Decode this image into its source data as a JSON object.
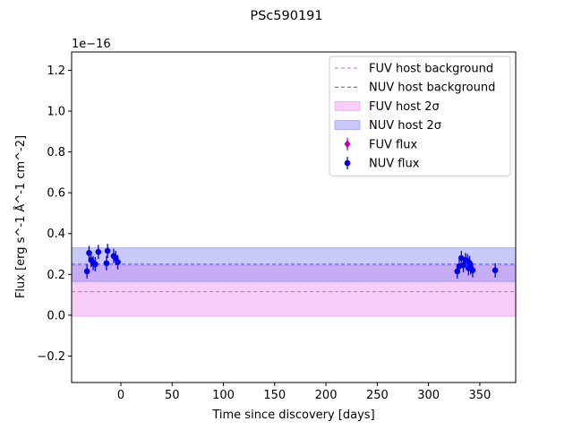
{
  "chart_data": {
    "type": "scatter",
    "title": "PSc590191",
    "xlabel": "Time since discovery [days]",
    "ylabel": "Flux [erg s^-1 Å^-1 cm^-2]",
    "y_offset_label": "1e−16",
    "y_scale": 1e-16,
    "xlim": [
      -48,
      385
    ],
    "ylim": [
      -0.33,
      1.29
    ],
    "x_ticks": [
      0,
      50,
      100,
      150,
      200,
      250,
      300,
      350
    ],
    "y_ticks": [
      -0.2,
      0.0,
      0.2,
      0.4,
      0.6,
      0.8,
      1.0,
      1.2
    ],
    "x_tick_labels": [
      "0",
      "50",
      "100",
      "150",
      "200",
      "250",
      "300",
      "350"
    ],
    "y_tick_labels": [
      "−0.2",
      "0.0",
      "0.2",
      "0.4",
      "0.6",
      "0.8",
      "1.0",
      "1.2"
    ],
    "grid": false,
    "legend_position": "top-right",
    "bands": [
      {
        "name": "FUV host 2σ",
        "lower": -0.005,
        "upper": 0.245,
        "color": "#ee82ee",
        "opacity": 0.4
      },
      {
        "name": "NUV host 2σ",
        "lower": 0.165,
        "upper": 0.33,
        "color": "#7b7bf0",
        "opacity": 0.4
      }
    ],
    "hlines": [
      {
        "name": "FUV host background",
        "y": 0.115,
        "color": "#e060c0"
      },
      {
        "name": "NUV host background",
        "y": 0.25,
        "color": "#5050e0"
      }
    ],
    "series": [
      {
        "name": "FUV flux",
        "color": "#bf00bf",
        "marker": "diamond",
        "points": []
      },
      {
        "name": "NUV flux",
        "color": "#0000ee",
        "marker": "circle",
        "points": [
          {
            "x": -33,
            "y": 0.215,
            "err": 0.035
          },
          {
            "x": -31,
            "y": 0.305,
            "err": 0.035
          },
          {
            "x": -29,
            "y": 0.27,
            "err": 0.035
          },
          {
            "x": -27,
            "y": 0.255,
            "err": 0.035
          },
          {
            "x": -25,
            "y": 0.25,
            "err": 0.035
          },
          {
            "x": -22,
            "y": 0.31,
            "err": 0.035
          },
          {
            "x": -14,
            "y": 0.255,
            "err": 0.035
          },
          {
            "x": -13,
            "y": 0.315,
            "err": 0.035
          },
          {
            "x": -7,
            "y": 0.29,
            "err": 0.035
          },
          {
            "x": -5,
            "y": 0.28,
            "err": 0.035
          },
          {
            "x": -3,
            "y": 0.26,
            "err": 0.035
          },
          {
            "x": 328,
            "y": 0.215,
            "err": 0.035
          },
          {
            "x": 330,
            "y": 0.24,
            "err": 0.035
          },
          {
            "x": 332,
            "y": 0.28,
            "err": 0.035
          },
          {
            "x": 334,
            "y": 0.245,
            "err": 0.035
          },
          {
            "x": 336,
            "y": 0.27,
            "err": 0.035
          },
          {
            "x": 338,
            "y": 0.265,
            "err": 0.035
          },
          {
            "x": 339,
            "y": 0.23,
            "err": 0.035
          },
          {
            "x": 340,
            "y": 0.255,
            "err": 0.035
          },
          {
            "x": 341,
            "y": 0.235,
            "err": 0.035
          },
          {
            "x": 343,
            "y": 0.22,
            "err": 0.035
          },
          {
            "x": 365,
            "y": 0.22,
            "err": 0.035
          }
        ]
      }
    ],
    "legend_entries": [
      {
        "label": "FUV host background",
        "kind": "hline",
        "ref": "FUV host background"
      },
      {
        "label": "NUV host background",
        "kind": "hline",
        "ref": "NUV host background"
      },
      {
        "label": "FUV host 2σ",
        "kind": "band",
        "ref": "FUV host 2σ"
      },
      {
        "label": "NUV host 2σ",
        "kind": "band",
        "ref": "NUV host 2σ"
      },
      {
        "label": "FUV flux",
        "kind": "series",
        "ref": "FUV flux"
      },
      {
        "label": "NUV flux",
        "kind": "series",
        "ref": "NUV flux"
      }
    ]
  }
}
